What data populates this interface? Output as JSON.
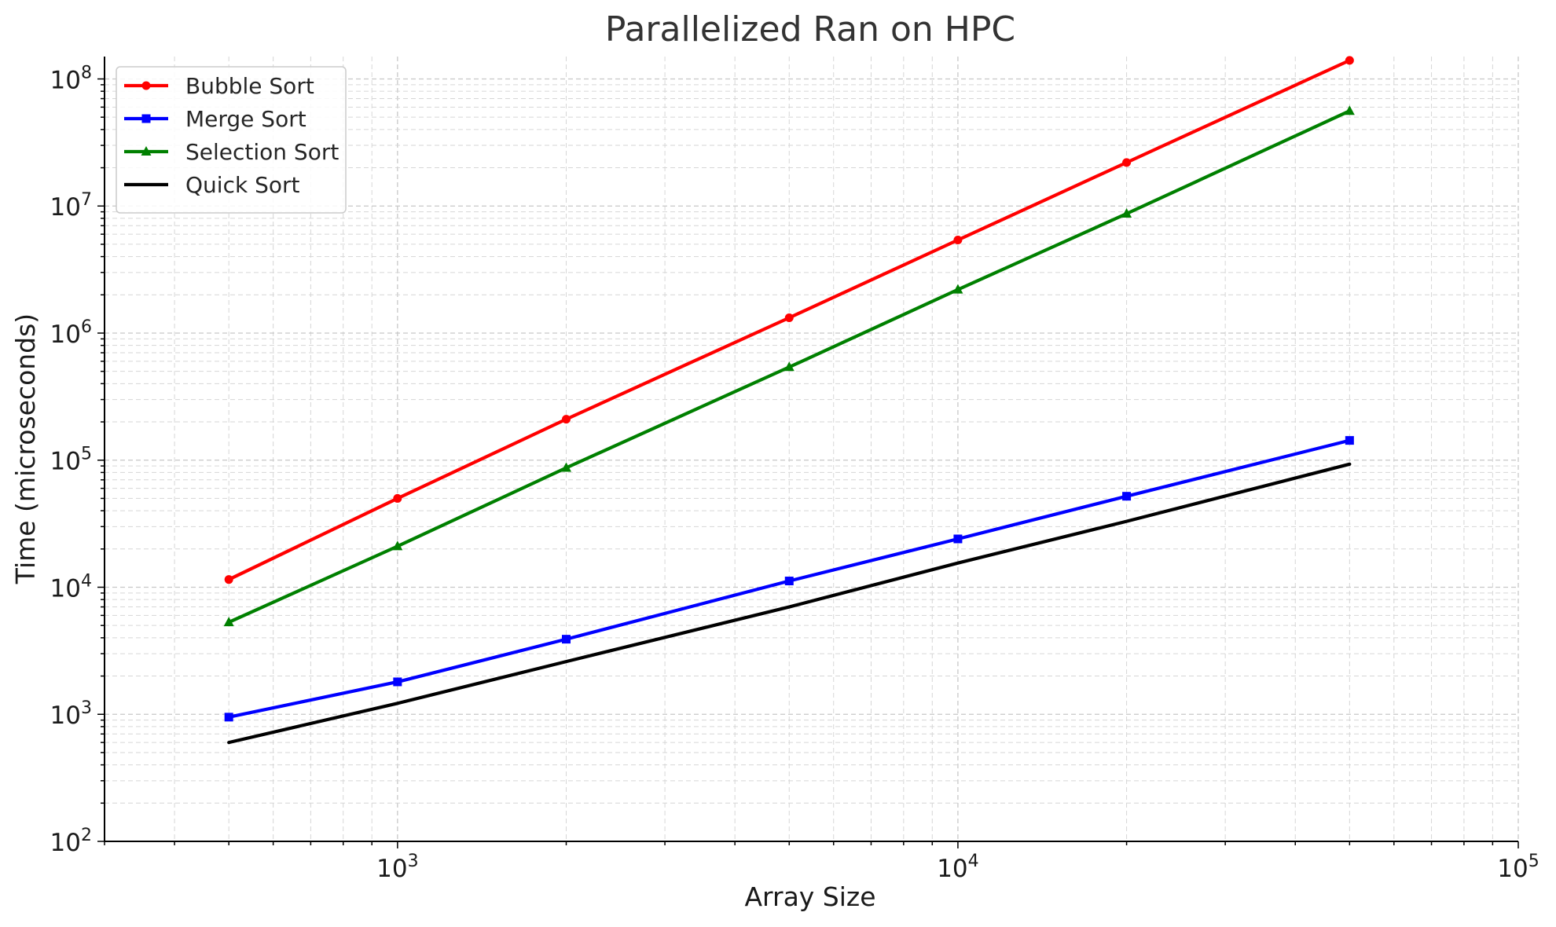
{
  "chart_data": {
    "type": "line",
    "title": "Parallelized Ran on HPC",
    "xlabel": "Array Size",
    "ylabel": "Time (microseconds)",
    "x_scale": "log",
    "y_scale": "log",
    "xlim": [
      300,
      100000
    ],
    "ylim": [
      100,
      150000000
    ],
    "x_ticks": [
      {
        "value": 1000,
        "base": "10",
        "exp": "3"
      },
      {
        "value": 10000,
        "base": "10",
        "exp": "4"
      },
      {
        "value": 100000,
        "base": "10",
        "exp": "5"
      }
    ],
    "y_ticks": [
      {
        "value": 100,
        "base": "10",
        "exp": "2"
      },
      {
        "value": 1000,
        "base": "10",
        "exp": "3"
      },
      {
        "value": 10000,
        "base": "10",
        "exp": "4"
      },
      {
        "value": 100000,
        "base": "10",
        "exp": "5"
      },
      {
        "value": 1000000,
        "base": "10",
        "exp": "6"
      },
      {
        "value": 10000000,
        "base": "10",
        "exp": "7"
      },
      {
        "value": 100000000,
        "base": "10",
        "exp": "8"
      }
    ],
    "grid": true,
    "minor_grid": true,
    "legend_position": "top-left",
    "x": [
      500,
      1000,
      2000,
      5000,
      10000,
      20000,
      50000
    ],
    "series": [
      {
        "name": "Bubble Sort",
        "color": "#ff0000",
        "marker": "circle",
        "values": [
          11500,
          50000,
          210000,
          1320000,
          5400000,
          22000000,
          140000000
        ]
      },
      {
        "name": "Merge Sort",
        "color": "#0000ff",
        "marker": "square",
        "values": [
          950,
          1800,
          3900,
          11200,
          24000,
          52000,
          143000
        ]
      },
      {
        "name": "Selection Sort",
        "color": "#008000",
        "marker": "triangle",
        "values": [
          5300,
          21000,
          87000,
          540000,
          2200000,
          8700000,
          56000000
        ]
      },
      {
        "name": "Quick Sort",
        "color": "#000000",
        "marker": "none",
        "values": [
          600,
          1220,
          2600,
          7000,
          15500,
          33000,
          93000
        ]
      }
    ]
  }
}
